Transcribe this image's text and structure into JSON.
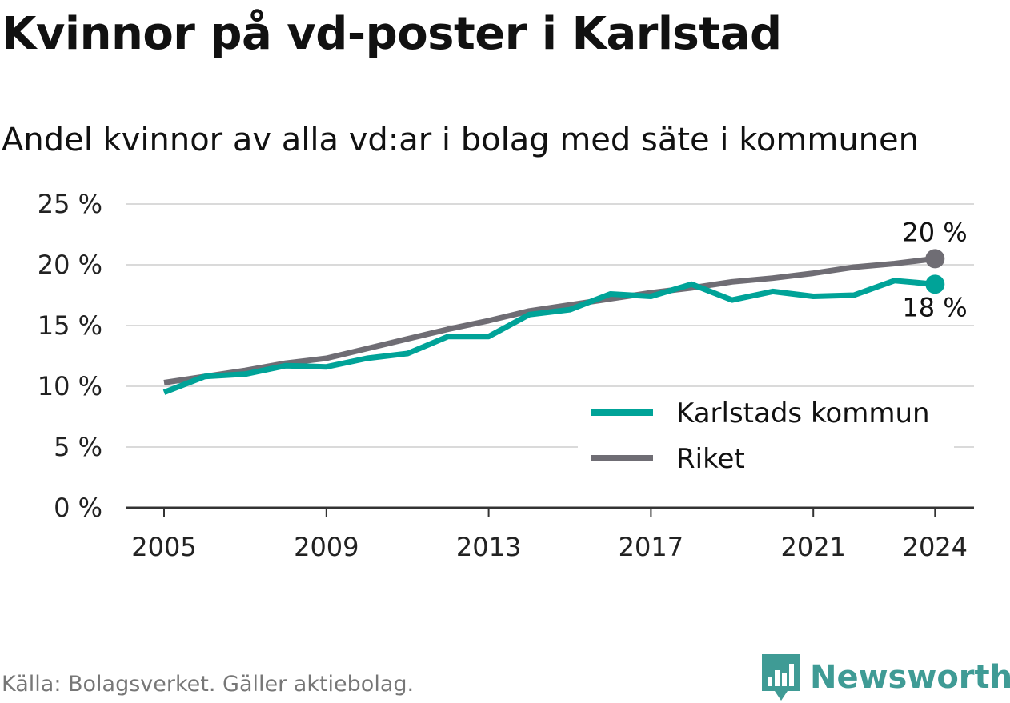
{
  "title": "Kvinnor på vd-poster i Karlstad",
  "subtitle": "Andel kvinnor av alla vd:ar i bolag med säte i kommunen",
  "source": "Källa: Bolagsverket. Gäller aktiebolag.",
  "brand": "Newsworthy",
  "chart_data": {
    "type": "line",
    "title": "Kvinnor på vd-poster i Karlstad",
    "subtitle": "Andel kvinnor av alla vd:ar i bolag med säte i kommunen",
    "xlabel": "",
    "ylabel": "",
    "x": [
      2005,
      2006,
      2007,
      2008,
      2009,
      2010,
      2011,
      2012,
      2013,
      2014,
      2015,
      2016,
      2017,
      2018,
      2019,
      2020,
      2021,
      2022,
      2023,
      2024
    ],
    "xticks": [
      "2005",
      "2009",
      "2013",
      "2017",
      "2021",
      "2024"
    ],
    "yticks": [
      "0 %",
      "5 %",
      "10 %",
      "15 %",
      "20 %",
      "25 %"
    ],
    "ylim": [
      0,
      25
    ],
    "grid": true,
    "legend_position": "bottom-right",
    "series": [
      {
        "name": "Karlstads kommun",
        "color": "#00a398",
        "values": [
          9.5,
          10.8,
          11.0,
          11.7,
          11.6,
          12.3,
          12.7,
          14.1,
          14.1,
          15.9,
          16.3,
          17.6,
          17.4,
          18.4,
          17.1,
          17.8,
          17.4,
          17.5,
          18.7,
          18.4
        ],
        "end_label": "18 %"
      },
      {
        "name": "Riket",
        "color": "#6f6d74",
        "values": [
          10.3,
          10.8,
          11.3,
          11.9,
          12.3,
          13.1,
          13.9,
          14.7,
          15.4,
          16.2,
          16.7,
          17.2,
          17.7,
          18.1,
          18.6,
          18.9,
          19.3,
          19.8,
          20.1,
          20.5
        ],
        "end_label": "20 %"
      }
    ]
  }
}
